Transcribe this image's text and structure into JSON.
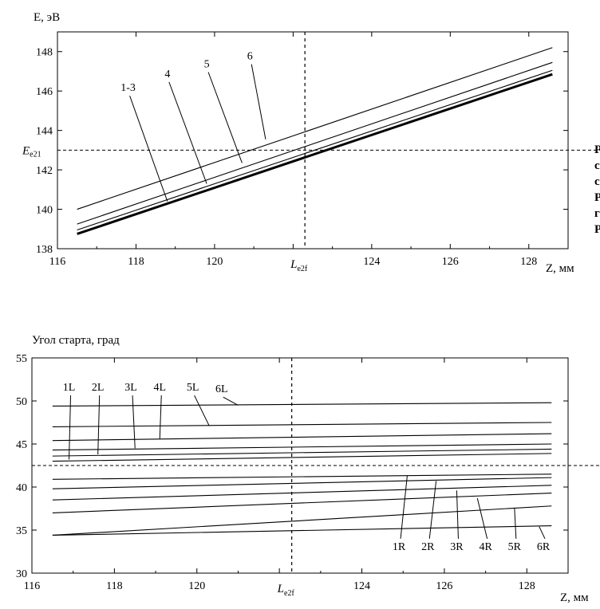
{
  "charts": [
    {
      "type": "line",
      "ylabel": "E, эВ",
      "xlabel": "Z, мм",
      "xlim": [
        116,
        129
      ],
      "ylim": [
        138,
        149
      ],
      "x_ticks": [
        "116",
        "118",
        "120",
        "",
        "124",
        "126",
        "128"
      ],
      "x_tick_values": [
        116,
        118,
        120,
        122,
        124,
        126,
        128
      ],
      "y_ticks": [
        "138",
        "140",
        "142",
        "144",
        "146",
        "148"
      ],
      "y_tick_values": [
        138,
        140,
        142,
        144,
        146,
        148
      ],
      "ref_x": {
        "value": 122.3,
        "label": "L",
        "sub": "e2f"
      },
      "ref_y": {
        "value": 143.0,
        "label": "E",
        "sub": "e21"
      },
      "series": [
        {
          "name": "1-3",
          "x": [
            116.5,
            128.6
          ],
          "y": [
            138.75,
            146.85
          ],
          "bold": true,
          "label_at": [
            118.8,
            140.4
          ]
        },
        {
          "name": "4",
          "x": [
            116.5,
            128.6
          ],
          "y": [
            138.95,
            147.05
          ],
          "bold": false,
          "label_at": [
            119.8,
            141.3
          ]
        },
        {
          "name": "5",
          "x": [
            116.5,
            128.6
          ],
          "y": [
            139.25,
            147.45
          ],
          "bold": false,
          "label_at": [
            120.7,
            142.35
          ]
        },
        {
          "name": "6",
          "x": [
            116.5,
            128.6
          ],
          "y": [
            140.0,
            148.2
          ],
          "bold": false,
          "label_at": [
            121.3,
            143.55
          ]
        }
      ],
      "label_text_pos": [
        [
          117.8,
          146.0
        ],
        [
          118.8,
          146.7
        ],
        [
          119.8,
          147.2
        ],
        [
          120.9,
          147.6
        ]
      ]
    },
    {
      "type": "line",
      "ylabel": "Угол старта, град",
      "xlabel": "Z, мм",
      "xlim": [
        116,
        129
      ],
      "ylim": [
        30,
        55
      ],
      "x_ticks": [
        "116",
        "118",
        "120",
        "",
        "124",
        "126",
        "128"
      ],
      "x_tick_values": [
        116,
        118,
        120,
        122,
        124,
        126,
        128
      ],
      "y_ticks": [
        "30",
        "35",
        "40",
        "45",
        "50",
        "55"
      ],
      "y_tick_values": [
        30,
        35,
        40,
        45,
        50,
        55
      ],
      "ref_x": {
        "value": 122.3,
        "label": "L",
        "sub": "e2f"
      },
      "ref_y": {
        "value": 42.5
      },
      "series": [
        {
          "name": "1L",
          "x": [
            116.5,
            128.6
          ],
          "y": [
            43.0,
            43.9
          ],
          "label_at": [
            116.9,
            43.2
          ]
        },
        {
          "name": "2L",
          "x": [
            116.5,
            128.6
          ],
          "y": [
            43.6,
            44.4
          ],
          "label_at": [
            117.6,
            43.8
          ]
        },
        {
          "name": "3L",
          "x": [
            116.5,
            128.6
          ],
          "y": [
            44.3,
            45.0
          ],
          "label_at": [
            118.5,
            44.5
          ]
        },
        {
          "name": "4L",
          "x": [
            116.5,
            128.6
          ],
          "y": [
            45.4,
            46.2
          ],
          "label_at": [
            119.1,
            45.6
          ]
        },
        {
          "name": "5L",
          "x": [
            116.5,
            128.6
          ],
          "y": [
            47.0,
            47.5
          ],
          "label_at": [
            120.3,
            47.1
          ]
        },
        {
          "name": "6L",
          "x": [
            116.5,
            128.6
          ],
          "y": [
            49.4,
            49.8
          ],
          "label_at": [
            121.0,
            49.5
          ]
        },
        {
          "name": "1R",
          "x": [
            116.5,
            128.6
          ],
          "y": [
            40.9,
            41.5
          ],
          "label_at": [
            125.1,
            41.3
          ]
        },
        {
          "name": "2R",
          "x": [
            116.5,
            128.6
          ],
          "y": [
            39.8,
            41.1
          ],
          "label_at": [
            125.8,
            40.7
          ]
        },
        {
          "name": "3R",
          "x": [
            116.5,
            128.6
          ],
          "y": [
            38.5,
            40.2
          ],
          "label_at": [
            126.3,
            39.6
          ]
        },
        {
          "name": "4R",
          "x": [
            116.5,
            128.6
          ],
          "y": [
            37.0,
            39.3
          ],
          "label_at": [
            126.8,
            38.7
          ]
        },
        {
          "name": "5R",
          "x": [
            116.5,
            128.6
          ],
          "y": [
            34.4,
            37.8
          ],
          "label_at": [
            127.7,
            37.6
          ]
        },
        {
          "name": "6R",
          "x": [
            116.5,
            128.6
          ],
          "y": [
            34.4,
            35.5
          ],
          "label_at": [
            128.3,
            35.4
          ]
        }
      ],
      "label_text_pos": [
        [
          116.9,
          51.2
        ],
        [
          117.6,
          51.2
        ],
        [
          118.4,
          51.2
        ],
        [
          119.1,
          51.2
        ],
        [
          119.9,
          51.2
        ],
        [
          120.6,
          51.0
        ],
        [
          124.9,
          32.7
        ],
        [
          125.6,
          32.7
        ],
        [
          126.3,
          32.7
        ],
        [
          127.0,
          32.7
        ],
        [
          127.7,
          32.7
        ],
        [
          128.4,
          32.7
        ]
      ],
      "label_text_rotated": false
    }
  ],
  "margin_text": [
    "Р",
    "с",
    "с",
    "Р",
    "г",
    "Р"
  ]
}
